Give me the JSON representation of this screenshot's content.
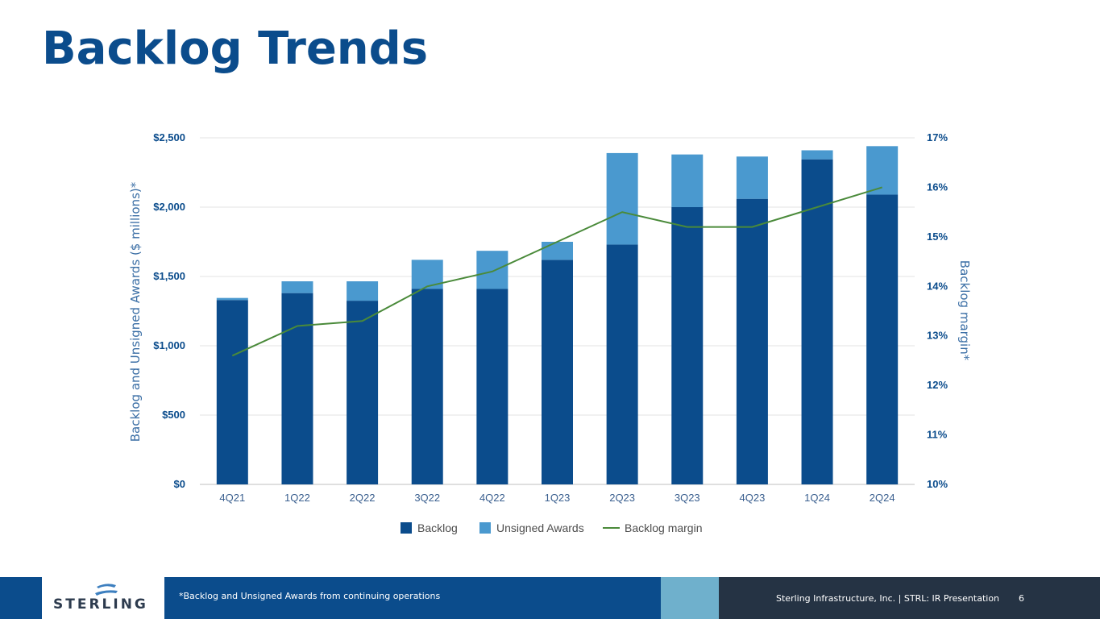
{
  "page": {
    "title": "Backlog Trends"
  },
  "chart_data": {
    "type": "bar",
    "stacked": true,
    "categories": [
      "4Q21",
      "1Q22",
      "2Q22",
      "3Q22",
      "4Q22",
      "1Q23",
      "2Q23",
      "3Q23",
      "4Q23",
      "1Q24",
      "2Q24"
    ],
    "series": [
      {
        "name": "Backlog",
        "type": "bar",
        "axis": "left",
        "color": "#0b4c8c",
        "values": [
          1330,
          1380,
          1325,
          1410,
          1410,
          1620,
          1730,
          2000,
          2060,
          2345,
          2090
        ]
      },
      {
        "name": "Unsigned Awards",
        "type": "bar",
        "axis": "left",
        "color": "#4a99cf",
        "values": [
          15,
          85,
          140,
          210,
          275,
          130,
          660,
          380,
          305,
          65,
          350
        ]
      },
      {
        "name": "Backlog margin",
        "type": "line",
        "axis": "right",
        "color": "#4a8a3a",
        "values": [
          12.6,
          13.2,
          13.3,
          14.0,
          14.3,
          14.9,
          15.5,
          15.2,
          15.2,
          15.6,
          16.0
        ]
      }
    ],
    "y_left": {
      "label": "Backlog and Unsigned Awards ($ millions)*",
      "min": 0,
      "max": 2500,
      "ticks": [
        0,
        500,
        1000,
        1500,
        2000,
        2500
      ],
      "tick_labels": [
        "$0",
        "$500",
        "$1,000",
        "$1,500",
        "$2,000",
        "$2,500"
      ]
    },
    "y_right": {
      "label": "Backlog margin*",
      "min": 10,
      "max": 17,
      "ticks": [
        10,
        11,
        12,
        13,
        14,
        15,
        16,
        17
      ],
      "tick_labels": [
        "10%",
        "11%",
        "12%",
        "13%",
        "14%",
        "15%",
        "16%",
        "17%"
      ]
    },
    "grid": true,
    "legend_position": "bottom"
  },
  "footer": {
    "logo_text": "STERLING",
    "note": "*Backlog and Unsigned Awards from continuing operations",
    "company": "Sterling Infrastructure, Inc. | STRL:  IR Presentation",
    "page_number": "6"
  }
}
